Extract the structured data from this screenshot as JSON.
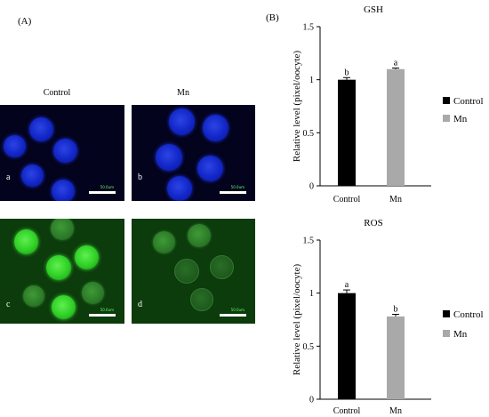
{
  "figure": {
    "panel_a_label": "(A)",
    "panel_b_label": "(B)",
    "column_labels": [
      "Control",
      "Mn"
    ],
    "micrographs": [
      {
        "letter": "a",
        "stain": "blue",
        "scale_text": "50.0um"
      },
      {
        "letter": "b",
        "stain": "blue",
        "scale_text": "50.0um"
      },
      {
        "letter": "c",
        "stain": "green",
        "scale_text": "50.0um"
      },
      {
        "letter": "d",
        "stain": "green",
        "scale_text": "50.0um"
      }
    ]
  },
  "chart_data": [
    {
      "type": "bar",
      "title": "GSH",
      "categories": [
        "Control",
        "Mn"
      ],
      "values": [
        1.0,
        1.1
      ],
      "errors": [
        0.02,
        0.01
      ],
      "significance": [
        "b",
        "a"
      ],
      "colors": [
        "#000000",
        "#a9a9a9"
      ],
      "ylabel": "Relative level (pixel/oocyte)",
      "ylim": [
        0,
        1.5
      ],
      "yticks": [
        "0",
        "0.5",
        "1",
        "1.5"
      ],
      "legend": [
        "Control",
        "Mn"
      ],
      "legend_position": "right",
      "grid": false
    },
    {
      "type": "bar",
      "title": "ROS",
      "categories": [
        "Control",
        "Mn"
      ],
      "values": [
        1.0,
        0.78
      ],
      "errors": [
        0.03,
        0.02
      ],
      "significance": [
        "a",
        "b"
      ],
      "colors": [
        "#000000",
        "#a9a9a9"
      ],
      "ylabel": "Relative level (pixel/oocyte)",
      "ylim": [
        0,
        1.5
      ],
      "yticks": [
        "0",
        "0.5",
        "1",
        "1.5"
      ],
      "legend": [
        "Control",
        "Mn"
      ],
      "legend_position": "right",
      "grid": false
    }
  ]
}
